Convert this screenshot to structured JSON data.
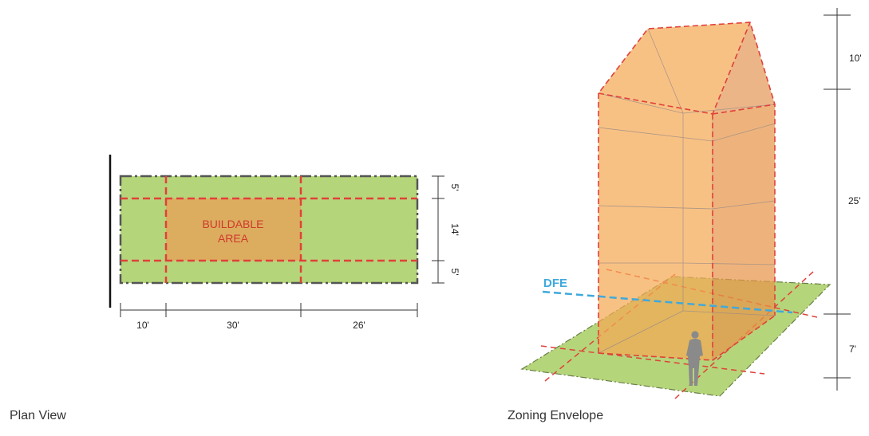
{
  "plan": {
    "caption": "Plan View",
    "buildable_label_line1": "BUILDABLE",
    "buildable_label_line2": "AREA",
    "dims_horizontal": [
      "10'",
      "30'",
      "26'"
    ],
    "dims_vertical": [
      "5'",
      "14'",
      "5'"
    ]
  },
  "envelope": {
    "caption": "Zoning Envelope",
    "dfe_label": "DFE",
    "heights": [
      "10'",
      "25'",
      "7'"
    ]
  },
  "colors": {
    "lot_green": "#b5d57a",
    "envelope_orange": "#f5a955",
    "setback_red": "#e0413a",
    "buildable_text": "#d0392b",
    "dfe_blue": "#3fa9dc",
    "lot_border": "#555555"
  }
}
